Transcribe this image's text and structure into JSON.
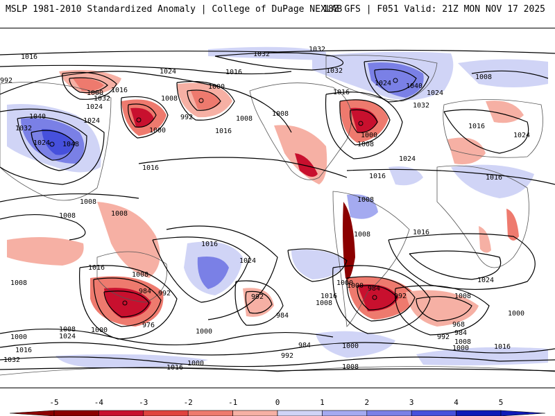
{
  "header": {
    "left": "MSLP 1981-2010 Standardized Anomaly | College of DuPage NEXLAB",
    "right": "18Z GFS | F051 Valid: 21Z MON NOV 17 2025"
  },
  "colorbar": {
    "ticks": [
      "-5",
      "-4",
      "-3",
      "-2",
      "-1",
      "0",
      "1",
      "2",
      "3",
      "4",
      "5"
    ],
    "colors": [
      "#8b0000",
      "#c8102e",
      "#e0433e",
      "#ee7a6e",
      "#f6b0a4",
      "#ffffff",
      "#d0d4f6",
      "#a4aaf0",
      "#7a80e6",
      "#4650dc",
      "#0f1ab8"
    ]
  },
  "isobar_labels": [
    {
      "text": "1016"
    },
    {
      "text": "1032"
    },
    {
      "text": "1032"
    },
    {
      "text": "1024"
    },
    {
      "text": "1016"
    },
    {
      "text": "992"
    },
    {
      "text": "1000"
    },
    {
      "text": "1016"
    },
    {
      "text": "1008"
    },
    {
      "text": "1000"
    },
    {
      "text": "1032"
    },
    {
      "text": "1024"
    },
    {
      "text": "1040"
    },
    {
      "text": "1024"
    },
    {
      "text": "1048"
    },
    {
      "text": "1032"
    },
    {
      "text": "1024"
    },
    {
      "text": "1000"
    },
    {
      "text": "992"
    },
    {
      "text": "1008"
    },
    {
      "text": "1016"
    },
    {
      "text": "1016"
    },
    {
      "text": "1032"
    },
    {
      "text": "1024"
    },
    {
      "text": "1040"
    },
    {
      "text": "1024"
    },
    {
      "text": "1032"
    },
    {
      "text": "1000"
    },
    {
      "text": "1008"
    },
    {
      "text": "1008"
    },
    {
      "text": "1008"
    },
    {
      "text": "1016"
    },
    {
      "text": "1024"
    },
    {
      "text": "1024"
    },
    {
      "text": "1016"
    },
    {
      "text": "1016"
    },
    {
      "text": "1008"
    },
    {
      "text": "1008"
    },
    {
      "text": "1008"
    },
    {
      "text": "1008"
    },
    {
      "text": "1016"
    },
    {
      "text": "1016"
    },
    {
      "text": "1024"
    },
    {
      "text": "1008"
    },
    {
      "text": "1016"
    },
    {
      "text": "1024"
    },
    {
      "text": "1008"
    },
    {
      "text": "1008"
    },
    {
      "text": "1016"
    },
    {
      "text": "984"
    },
    {
      "text": "992"
    },
    {
      "text": "976"
    },
    {
      "text": "1000"
    },
    {
      "text": "1008"
    },
    {
      "text": "1000"
    },
    {
      "text": "1000"
    },
    {
      "text": "1024"
    },
    {
      "text": "1016"
    },
    {
      "text": "1032"
    },
    {
      "text": "992"
    },
    {
      "text": "984"
    },
    {
      "text": "1000"
    },
    {
      "text": "1016"
    },
    {
      "text": "1008"
    },
    {
      "text": "1000"
    },
    {
      "text": "984"
    },
    {
      "text": "992"
    },
    {
      "text": "1008"
    },
    {
      "text": "968"
    },
    {
      "text": "984"
    },
    {
      "text": "992"
    },
    {
      "text": "1008"
    },
    {
      "text": "1000"
    },
    {
      "text": "1016"
    },
    {
      "text": "1000"
    },
    {
      "text": "984"
    },
    {
      "text": "992"
    },
    {
      "text": "1000"
    },
    {
      "text": "1008"
    },
    {
      "text": "1016"
    },
    {
      "text": "1000"
    }
  ]
}
